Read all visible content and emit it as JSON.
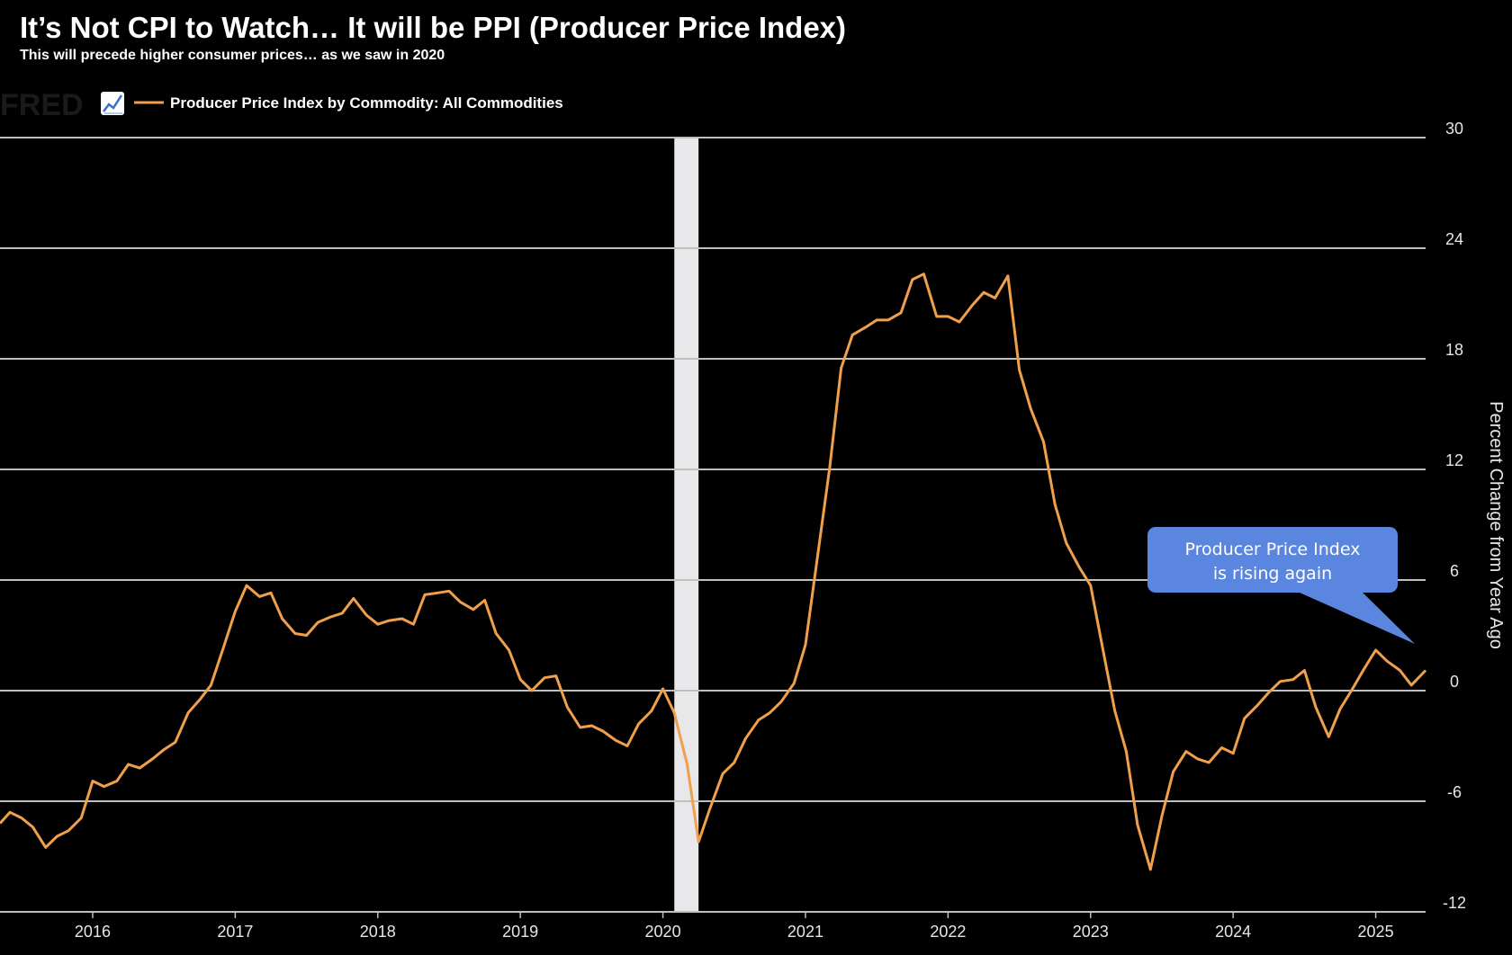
{
  "title": "It’s Not CPI to Watch… It will be PPI (Producer Price Index)",
  "subtitle": "This will precede higher consumer prices… as we saw in 2020",
  "logo": "FRED",
  "legend": {
    "label": "Producer Price Index by Commodity: All Commodities",
    "icon": "line-chart-icon"
  },
  "callout": {
    "line1": "Producer Price Index",
    "line2": "is rising again"
  },
  "colors": {
    "series": "#f0a04b",
    "grid": "#bfbfbf",
    "recession": "#e8e8ea",
    "callout": "#5a86e0"
  },
  "chart_data": {
    "type": "line",
    "title": "Producer Price Index by Commodity: All Commodities",
    "ylabel": "Percent Change from Year Ago",
    "xlabel": "",
    "ylim": [
      -12,
      30
    ],
    "yticks": [
      30,
      24,
      18,
      12,
      6,
      0,
      -6,
      -12
    ],
    "xticks": [
      "2016",
      "2017",
      "2018",
      "2019",
      "2020",
      "2021",
      "2022",
      "2023",
      "2024",
      "2025"
    ],
    "xlim": [
      2015.35,
      2025.35
    ],
    "recession": [
      2020.08,
      2020.25
    ],
    "series": [
      {
        "name": "Producer Price Index by Commodity: All Commodities",
        "x": [
          2015.35,
          2015.42,
          2015.5,
          2015.58,
          2015.67,
          2015.75,
          2015.83,
          2015.92,
          2016.0,
          2016.08,
          2016.17,
          2016.25,
          2016.33,
          2016.42,
          2016.5,
          2016.58,
          2016.67,
          2016.75,
          2016.83,
          2016.92,
          2017.0,
          2017.08,
          2017.17,
          2017.25,
          2017.33,
          2017.42,
          2017.5,
          2017.58,
          2017.67,
          2017.75,
          2017.83,
          2017.92,
          2018.0,
          2018.08,
          2018.17,
          2018.25,
          2018.33,
          2018.42,
          2018.5,
          2018.58,
          2018.67,
          2018.75,
          2018.83,
          2018.92,
          2019.0,
          2019.08,
          2019.17,
          2019.25,
          2019.33,
          2019.42,
          2019.5,
          2019.58,
          2019.67,
          2019.75,
          2019.83,
          2019.92,
          2020.0,
          2020.08,
          2020.17,
          2020.25,
          2020.33,
          2020.42,
          2020.5,
          2020.58,
          2020.67,
          2020.75,
          2020.83,
          2020.92,
          2021.0,
          2021.08,
          2021.17,
          2021.25,
          2021.33,
          2021.42,
          2021.5,
          2021.58,
          2021.67,
          2021.75,
          2021.83,
          2021.92,
          2022.0,
          2022.08,
          2022.17,
          2022.25,
          2022.33,
          2022.42,
          2022.5,
          2022.58,
          2022.67,
          2022.75,
          2022.83,
          2022.92,
          2023.0,
          2023.08,
          2023.17,
          2023.25,
          2023.33,
          2023.42,
          2023.5,
          2023.58,
          2023.67,
          2023.75,
          2023.83,
          2023.92,
          2024.0,
          2024.08,
          2024.17,
          2024.25,
          2024.33,
          2024.42,
          2024.5,
          2024.58,
          2024.67,
          2024.75,
          2024.83,
          2024.92,
          2025.0,
          2025.08,
          2025.17,
          2025.25,
          2025.35
        ],
        "values": [
          -7.2,
          -6.6,
          -6.9,
          -7.4,
          -8.5,
          -7.9,
          -7.6,
          -6.9,
          -4.9,
          -5.2,
          -4.9,
          -4.0,
          -4.2,
          -3.7,
          -3.2,
          -2.8,
          -1.2,
          -0.5,
          0.3,
          2.4,
          4.3,
          5.7,
          5.1,
          5.3,
          3.9,
          3.1,
          3.0,
          3.7,
          4.0,
          4.2,
          5.0,
          4.1,
          3.6,
          3.8,
          3.9,
          3.6,
          5.2,
          5.3,
          5.4,
          4.8,
          4.4,
          4.9,
          3.1,
          2.2,
          0.6,
          0.0,
          0.7,
          0.8,
          -0.9,
          -2.0,
          -1.9,
          -2.2,
          -2.7,
          -3.0,
          -1.8,
          -1.1,
          0.1,
          -1.2,
          -4.0,
          -8.2,
          -6.4,
          -4.5,
          -3.9,
          -2.6,
          -1.6,
          -1.2,
          -0.6,
          0.4,
          2.5,
          7.0,
          12.1,
          17.5,
          19.3,
          19.7,
          20.1,
          20.1,
          20.5,
          22.3,
          22.6,
          20.3,
          20.3,
          20.0,
          20.9,
          21.6,
          21.3,
          22.5,
          17.4,
          15.3,
          13.5,
          10.1,
          8.0,
          6.7,
          5.7,
          2.5,
          -1.1,
          -3.3,
          -7.3,
          -9.7,
          -6.8,
          -4.4,
          -3.3,
          -3.7,
          -3.9,
          -3.1,
          -3.4,
          -1.5,
          -0.8,
          -0.1,
          0.5,
          0.6,
          1.1,
          -0.9,
          -2.5,
          -1.0,
          0.0,
          1.2,
          2.2,
          1.6,
          1.1,
          0.3,
          1.1
        ]
      }
    ]
  }
}
